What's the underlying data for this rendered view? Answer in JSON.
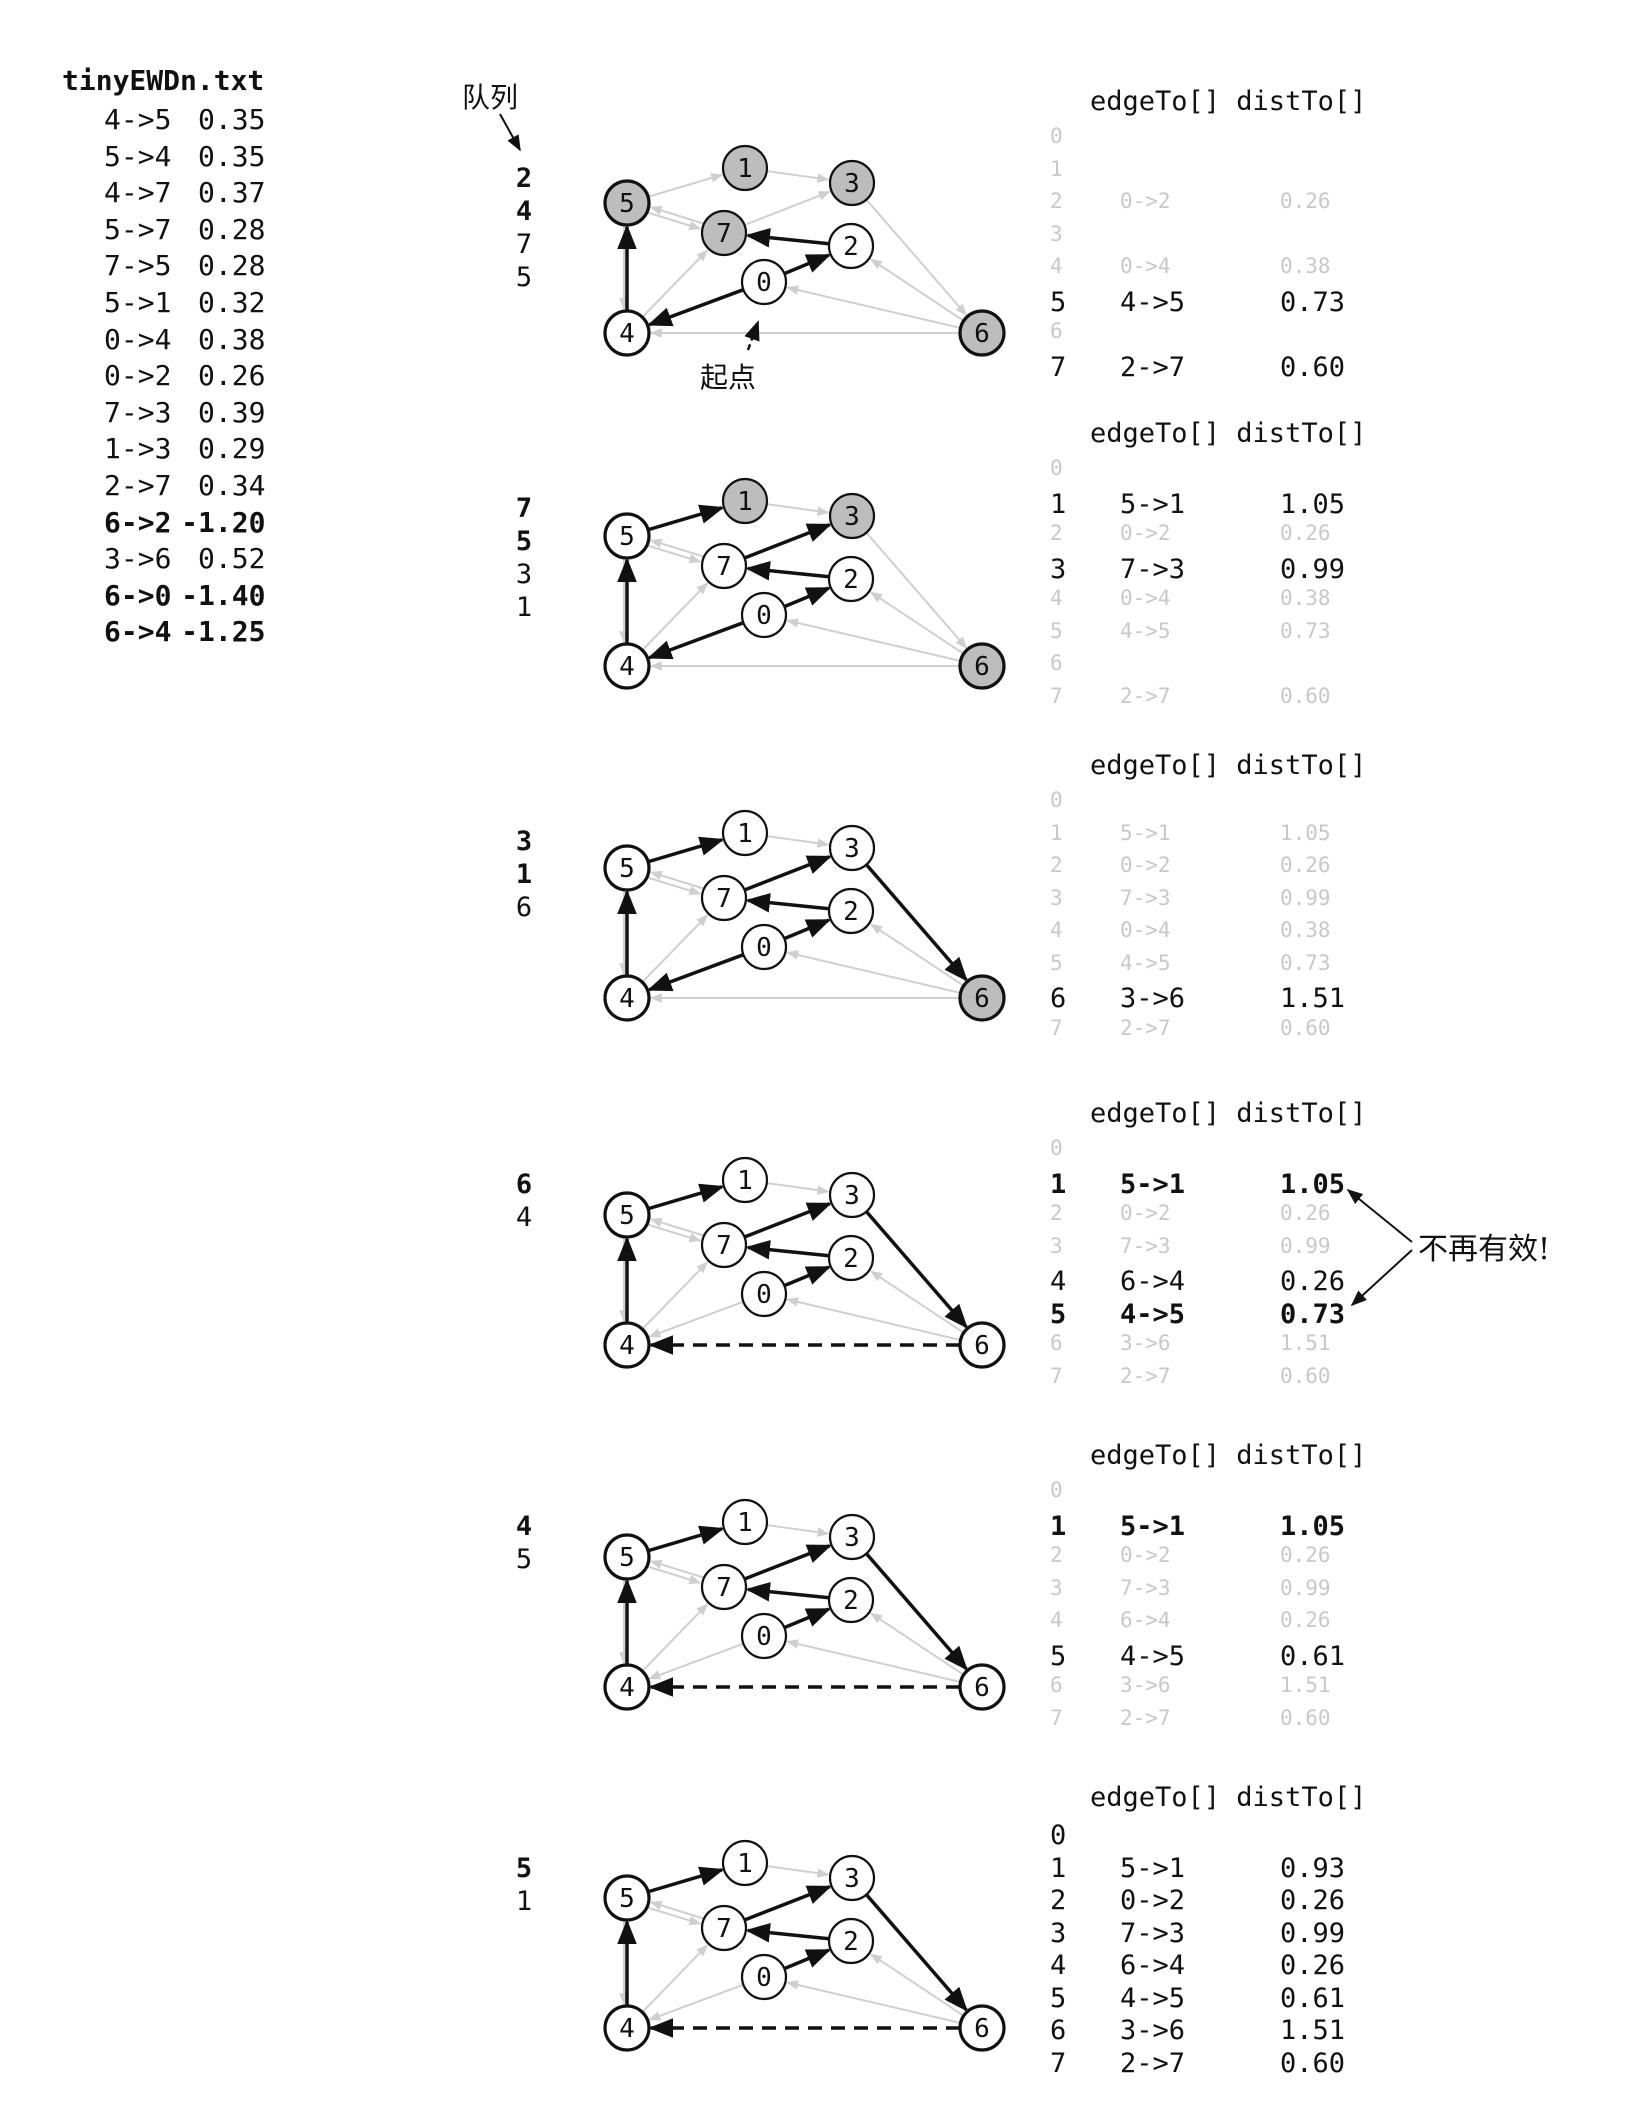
{
  "edge_list": {
    "title": "tinyEWDn.txt",
    "edges": [
      {
        "edge": "4->5",
        "weight": "0.35",
        "bold": false
      },
      {
        "edge": "5->4",
        "weight": "0.35",
        "bold": false
      },
      {
        "edge": "4->7",
        "weight": "0.37",
        "bold": false
      },
      {
        "edge": "5->7",
        "weight": "0.28",
        "bold": false
      },
      {
        "edge": "7->5",
        "weight": "0.28",
        "bold": false
      },
      {
        "edge": "5->1",
        "weight": "0.32",
        "bold": false
      },
      {
        "edge": "0->4",
        "weight": "0.38",
        "bold": false
      },
      {
        "edge": "0->2",
        "weight": "0.26",
        "bold": false
      },
      {
        "edge": "7->3",
        "weight": "0.39",
        "bold": false
      },
      {
        "edge": "1->3",
        "weight": "0.29",
        "bold": false
      },
      {
        "edge": "2->7",
        "weight": "0.34",
        "bold": false
      },
      {
        "edge": "6->2",
        "weight": "-1.20",
        "bold": true
      },
      {
        "edge": "3->6",
        "weight": "0.52",
        "bold": false
      },
      {
        "edge": "6->0",
        "weight": "-1.40",
        "bold": true
      },
      {
        "edge": "6->4",
        "weight": "-1.25",
        "bold": true
      }
    ]
  },
  "labels": {
    "queue": "队列",
    "source": "起点",
    "no_longer_valid": "不再有效!",
    "table_header": "edgeTo[] distTo[]"
  },
  "steps": [
    {
      "queue": [
        {
          "v": "2",
          "bold": true
        },
        {
          "v": "4",
          "bold": true
        },
        {
          "v": "7",
          "bold": false
        },
        {
          "v": "5",
          "bold": false
        }
      ],
      "gray_nodes": [
        "5",
        "1",
        "3",
        "7",
        "6"
      ],
      "tree_edges": [
        [
          "0",
          "2"
        ],
        [
          "0",
          "4"
        ],
        [
          "2",
          "7"
        ],
        [
          "4",
          "5"
        ]
      ],
      "dashed_edges": [],
      "rows": [
        {
          "v": "0",
          "edge": "",
          "dist": "",
          "style": "faded"
        },
        {
          "v": "1",
          "edge": "",
          "dist": "",
          "style": "faded"
        },
        {
          "v": "2",
          "edge": "0->2",
          "dist": "0.26",
          "style": "faded"
        },
        {
          "v": "3",
          "edge": "",
          "dist": "",
          "style": "faded"
        },
        {
          "v": "4",
          "edge": "0->4",
          "dist": "0.38",
          "style": "faded"
        },
        {
          "v": "5",
          "edge": "4->5",
          "dist": "0.73",
          "style": "normal"
        },
        {
          "v": "6",
          "edge": "",
          "dist": "",
          "style": "faded"
        },
        {
          "v": "7",
          "edge": "2->7",
          "dist": "0.60",
          "style": "normal"
        }
      ]
    },
    {
      "queue": [
        {
          "v": "7",
          "bold": true
        },
        {
          "v": "5",
          "bold": true
        },
        {
          "v": "3",
          "bold": false
        },
        {
          "v": "1",
          "bold": false
        }
      ],
      "gray_nodes": [
        "1",
        "3",
        "6"
      ],
      "tree_edges": [
        [
          "0",
          "2"
        ],
        [
          "0",
          "4"
        ],
        [
          "2",
          "7"
        ],
        [
          "4",
          "5"
        ],
        [
          "5",
          "1"
        ],
        [
          "7",
          "3"
        ]
      ],
      "dashed_edges": [],
      "rows": [
        {
          "v": "0",
          "edge": "",
          "dist": "",
          "style": "faded"
        },
        {
          "v": "1",
          "edge": "5->1",
          "dist": "1.05",
          "style": "normal"
        },
        {
          "v": "2",
          "edge": "0->2",
          "dist": "0.26",
          "style": "faded"
        },
        {
          "v": "3",
          "edge": "7->3",
          "dist": "0.99",
          "style": "normal"
        },
        {
          "v": "4",
          "edge": "0->4",
          "dist": "0.38",
          "style": "faded"
        },
        {
          "v": "5",
          "edge": "4->5",
          "dist": "0.73",
          "style": "faded"
        },
        {
          "v": "6",
          "edge": "",
          "dist": "",
          "style": "faded"
        },
        {
          "v": "7",
          "edge": "2->7",
          "dist": "0.60",
          "style": "faded"
        }
      ]
    },
    {
      "queue": [
        {
          "v": "3",
          "bold": true
        },
        {
          "v": "1",
          "bold": true
        },
        {
          "v": "6",
          "bold": false
        }
      ],
      "gray_nodes": [
        "6"
      ],
      "tree_edges": [
        [
          "0",
          "2"
        ],
        [
          "0",
          "4"
        ],
        [
          "2",
          "7"
        ],
        [
          "4",
          "5"
        ],
        [
          "5",
          "1"
        ],
        [
          "7",
          "3"
        ],
        [
          "3",
          "6"
        ]
      ],
      "dashed_edges": [],
      "rows": [
        {
          "v": "0",
          "edge": "",
          "dist": "",
          "style": "faded"
        },
        {
          "v": "1",
          "edge": "5->1",
          "dist": "1.05",
          "style": "faded"
        },
        {
          "v": "2",
          "edge": "0->2",
          "dist": "0.26",
          "style": "faded"
        },
        {
          "v": "3",
          "edge": "7->3",
          "dist": "0.99",
          "style": "faded"
        },
        {
          "v": "4",
          "edge": "0->4",
          "dist": "0.38",
          "style": "faded"
        },
        {
          "v": "5",
          "edge": "4->5",
          "dist": "0.73",
          "style": "faded"
        },
        {
          "v": "6",
          "edge": "3->6",
          "dist": "1.51",
          "style": "normal"
        },
        {
          "v": "7",
          "edge": "2->7",
          "dist": "0.60",
          "style": "faded"
        }
      ]
    },
    {
      "queue": [
        {
          "v": "6",
          "bold": true
        },
        {
          "v": "4",
          "bold": false
        }
      ],
      "gray_nodes": [],
      "tree_edges": [
        [
          "0",
          "2"
        ],
        [
          "2",
          "7"
        ],
        [
          "4",
          "5"
        ],
        [
          "5",
          "1"
        ],
        [
          "7",
          "3"
        ],
        [
          "3",
          "6"
        ]
      ],
      "dashed_edges": [
        [
          "6",
          "4"
        ]
      ],
      "rows": [
        {
          "v": "0",
          "edge": "",
          "dist": "",
          "style": "faded"
        },
        {
          "v": "1",
          "edge": "5->1",
          "dist": "1.05",
          "style": "bold"
        },
        {
          "v": "2",
          "edge": "0->2",
          "dist": "0.26",
          "style": "faded"
        },
        {
          "v": "3",
          "edge": "7->3",
          "dist": "0.99",
          "style": "faded"
        },
        {
          "v": "4",
          "edge": "6->4",
          "dist": "0.26",
          "style": "normal"
        },
        {
          "v": "5",
          "edge": "4->5",
          "dist": "0.73",
          "style": "bold"
        },
        {
          "v": "6",
          "edge": "3->6",
          "dist": "1.51",
          "style": "faded"
        },
        {
          "v": "7",
          "edge": "2->7",
          "dist": "0.60",
          "style": "faded"
        }
      ]
    },
    {
      "queue": [
        {
          "v": "4",
          "bold": true
        },
        {
          "v": "5",
          "bold": false
        }
      ],
      "gray_nodes": [],
      "tree_edges": [
        [
          "0",
          "2"
        ],
        [
          "2",
          "7"
        ],
        [
          "4",
          "5"
        ],
        [
          "5",
          "1"
        ],
        [
          "7",
          "3"
        ],
        [
          "3",
          "6"
        ]
      ],
      "dashed_edges": [
        [
          "6",
          "4"
        ]
      ],
      "rows": [
        {
          "v": "0",
          "edge": "",
          "dist": "",
          "style": "faded"
        },
        {
          "v": "1",
          "edge": "5->1",
          "dist": "1.05",
          "style": "bold"
        },
        {
          "v": "2",
          "edge": "0->2",
          "dist": "0.26",
          "style": "faded"
        },
        {
          "v": "3",
          "edge": "7->3",
          "dist": "0.99",
          "style": "faded"
        },
        {
          "v": "4",
          "edge": "6->4",
          "dist": "0.26",
          "style": "faded"
        },
        {
          "v": "5",
          "edge": "4->5",
          "dist": "0.61",
          "style": "normal"
        },
        {
          "v": "6",
          "edge": "3->6",
          "dist": "1.51",
          "style": "faded"
        },
        {
          "v": "7",
          "edge": "2->7",
          "dist": "0.60",
          "style": "faded"
        }
      ]
    },
    {
      "queue": [
        {
          "v": "5",
          "bold": true
        },
        {
          "v": "1",
          "bold": false
        }
      ],
      "gray_nodes": [],
      "tree_edges": [
        [
          "0",
          "2"
        ],
        [
          "2",
          "7"
        ],
        [
          "4",
          "5"
        ],
        [
          "5",
          "1"
        ],
        [
          "7",
          "3"
        ],
        [
          "3",
          "6"
        ]
      ],
      "dashed_edges": [
        [
          "6",
          "4"
        ]
      ],
      "rows": [
        {
          "v": "0",
          "edge": "",
          "dist": "",
          "style": "normal"
        },
        {
          "v": "1",
          "edge": "5->1",
          "dist": "0.93",
          "style": "normal"
        },
        {
          "v": "2",
          "edge": "0->2",
          "dist": "0.26",
          "style": "normal"
        },
        {
          "v": "3",
          "edge": "7->3",
          "dist": "0.99",
          "style": "normal"
        },
        {
          "v": "4",
          "edge": "6->4",
          "dist": "0.26",
          "style": "normal"
        },
        {
          "v": "5",
          "edge": "4->5",
          "dist": "0.61",
          "style": "normal"
        },
        {
          "v": "6",
          "edge": "3->6",
          "dist": "1.51",
          "style": "normal"
        },
        {
          "v": "7",
          "edge": "2->7",
          "dist": "0.60",
          "style": "normal"
        }
      ]
    }
  ]
}
